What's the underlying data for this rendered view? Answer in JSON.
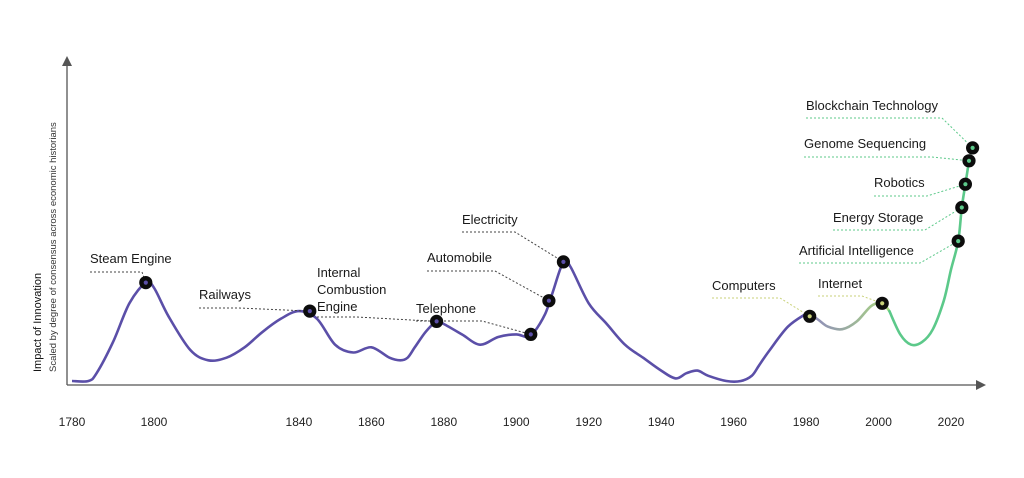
{
  "chart_data": {
    "type": "line",
    "ylabel": "Impact of Innovation",
    "ylabel_subtitle": "Scaled by degree of consensus across economic historians",
    "xlim": [
      1780,
      2026
    ],
    "ylim": [
      0,
      100
    ],
    "x_ticks": [
      "1780",
      "1800",
      "1840",
      "1860",
      "1880",
      "1900",
      "1920",
      "1940",
      "1960",
      "1980",
      "2000",
      "2020"
    ],
    "grid": false,
    "colors": {
      "pre_1980": "#5b4fa8",
      "digital": "#c9d27a",
      "recent": "#5cc98a",
      "marker": "#111111"
    },
    "series": [
      {
        "segment": "pre_1980",
        "x": [
          1780,
          1784,
          1786,
          1790,
          1794,
          1798,
          1800,
          1804,
          1810,
          1815,
          1820,
          1825,
          1830,
          1835,
          1840,
          1845,
          1850,
          1855,
          1860,
          1865,
          1868,
          1870,
          1872,
          1875,
          1878,
          1880,
          1885,
          1890,
          1895,
          1900,
          1903,
          1905,
          1908,
          1910,
          1913,
          1915,
          1920,
          1925,
          1930,
          1935,
          1940,
          1944,
          1947,
          1950,
          1953,
          1958,
          1962,
          1965,
          1967,
          1970,
          1975,
          1980
        ],
        "y": [
          0,
          0,
          3,
          15,
          30,
          38,
          36,
          25,
          12,
          8,
          9,
          13,
          19,
          24,
          27,
          24,
          14,
          11,
          13,
          9,
          8,
          9,
          13,
          19,
          23,
          22,
          18,
          14,
          17,
          18,
          17,
          19,
          26,
          34,
          46,
          44,
          30,
          22,
          14,
          9,
          4,
          1,
          3,
          4,
          2,
          0,
          0,
          2,
          6,
          12,
          21,
          26
        ]
      },
      {
        "segment": "digital",
        "x": [
          1980,
          1983,
          1986,
          1990,
          1994,
          1998,
          2001,
          2003
        ],
        "y": [
          26,
          24,
          21,
          20,
          23,
          29,
          30,
          27
        ]
      },
      {
        "segment": "recent",
        "x": [
          2003,
          2006,
          2009,
          2012,
          2015,
          2018,
          2020,
          2022,
          2023,
          2024,
          2025,
          2026
        ],
        "y": [
          27,
          18,
          14,
          15,
          20,
          31,
          43,
          54,
          67,
          76,
          85,
          90
        ]
      }
    ],
    "events": [
      {
        "label": "Steam Engine",
        "x": 1798,
        "y": 38,
        "color": "#5b4fa8"
      },
      {
        "label": "Railways",
        "x": 1843,
        "y": 27,
        "color": "#5b4fa8"
      },
      {
        "label": "Internal Combustion Engine",
        "label_lines": [
          "Internal",
          "Combustion",
          "Engine"
        ],
        "x": 1878,
        "y": 23,
        "color": "#5b4fa8"
      },
      {
        "label": "Telephone",
        "x": 1904,
        "y": 18,
        "color": "#5b4fa8"
      },
      {
        "label": "Automobile",
        "x": 1909,
        "y": 31,
        "color": "#5b4fa8"
      },
      {
        "label": "Electricity",
        "x": 1913,
        "y": 46,
        "color": "#5b4fa8"
      },
      {
        "label": "Computers",
        "x": 1981,
        "y": 25,
        "color": "#c9d27a"
      },
      {
        "label": "Internet",
        "x": 2001,
        "y": 30,
        "color": "#c9d27a"
      },
      {
        "label": "Artificial Intelligence",
        "x": 2022,
        "y": 54,
        "color": "#5cc98a"
      },
      {
        "label": "Energy Storage",
        "x": 2023,
        "y": 67,
        "color": "#5cc98a"
      },
      {
        "label": "Robotics",
        "x": 2024,
        "y": 76,
        "color": "#5cc98a"
      },
      {
        "label": "Genome Sequencing",
        "x": 2025,
        "y": 85,
        "color": "#5cc98a"
      },
      {
        "label": "Blockchain Technology",
        "x": 2026,
        "y": 90,
        "color": "#5cc98a"
      }
    ]
  }
}
